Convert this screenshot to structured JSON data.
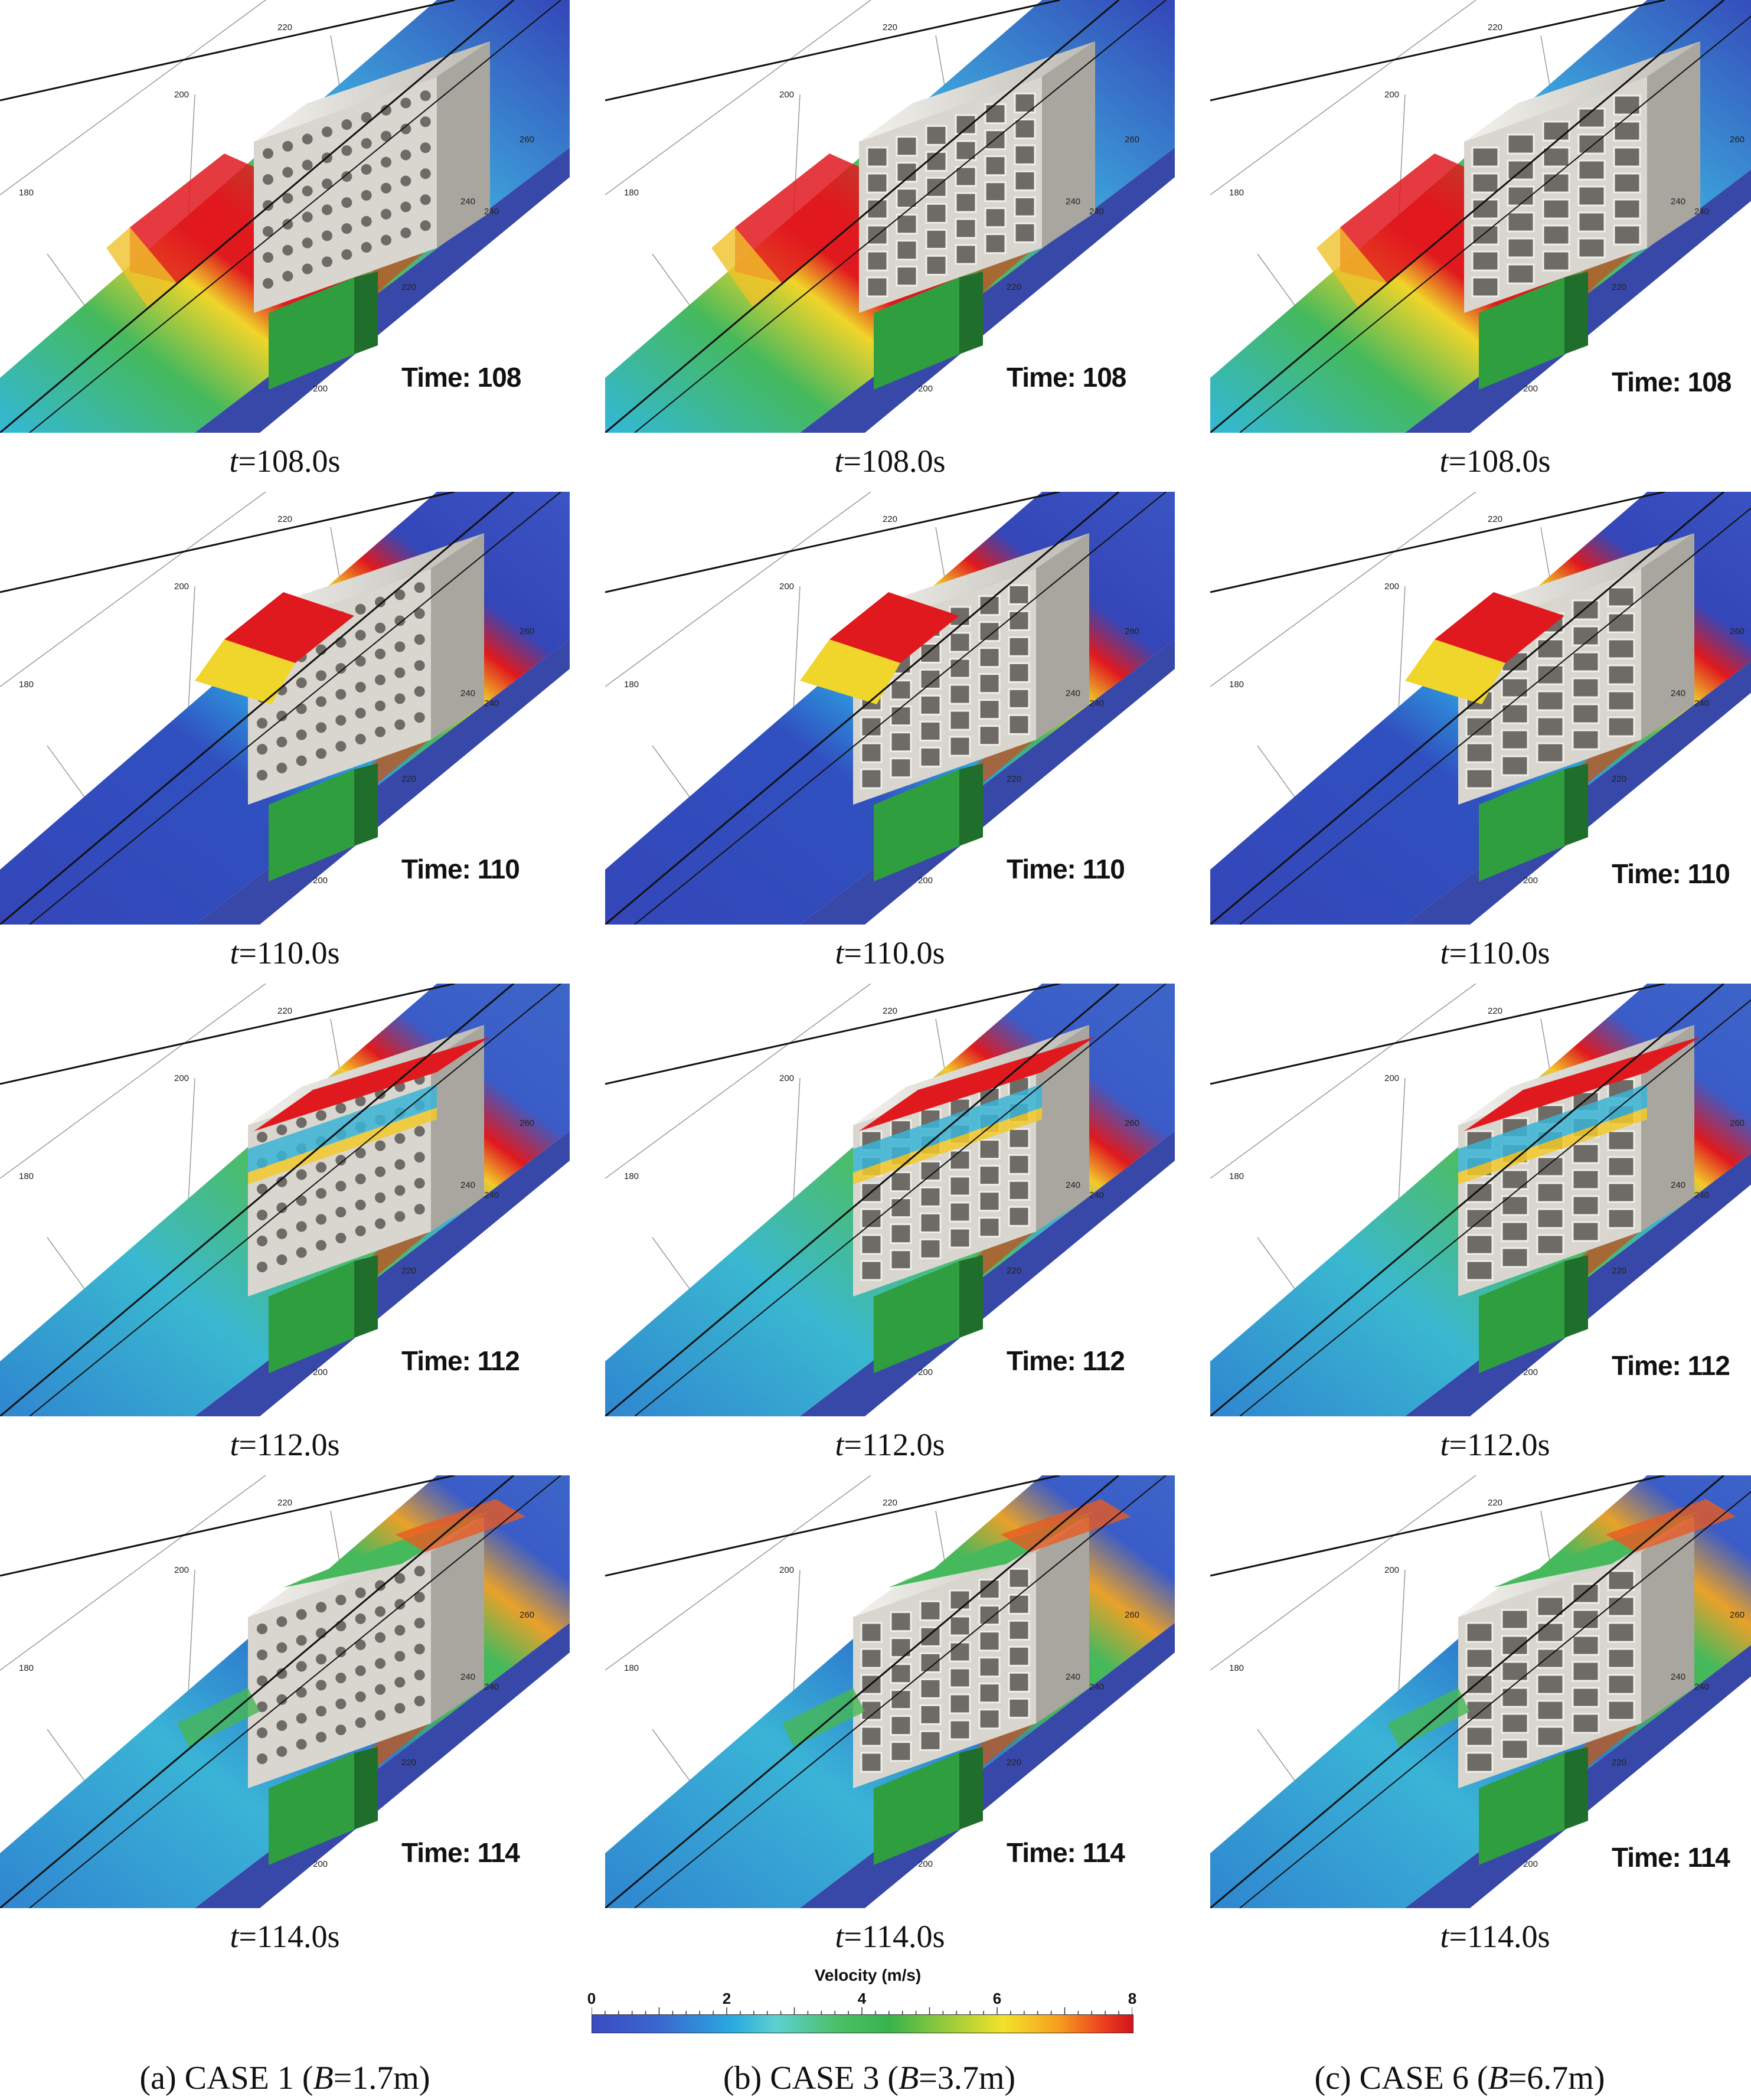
{
  "panels": [
    {
      "row": 0,
      "col": 0,
      "time_label": "Time: 108",
      "caption_var": "t",
      "caption_val": "=108.0s",
      "stage": 0,
      "holes": "round"
    },
    {
      "row": 0,
      "col": 1,
      "time_label": "Time: 108",
      "caption_var": "t",
      "caption_val": "=108.0s",
      "stage": 0,
      "holes": "mid"
    },
    {
      "row": 0,
      "col": 2,
      "time_label": "Time: 108",
      "caption_var": "t",
      "caption_val": "=108.0s",
      "stage": 0,
      "holes": "wide"
    },
    {
      "row": 1,
      "col": 0,
      "time_label": "Time: 110",
      "caption_var": "t",
      "caption_val": "=110.0s",
      "stage": 1,
      "holes": "round"
    },
    {
      "row": 1,
      "col": 1,
      "time_label": "Time: 110",
      "caption_var": "t",
      "caption_val": "=110.0s",
      "stage": 1,
      "holes": "mid"
    },
    {
      "row": 1,
      "col": 2,
      "time_label": "Time: 110",
      "caption_var": "t",
      "caption_val": "=110.0s",
      "stage": 1,
      "holes": "wide"
    },
    {
      "row": 2,
      "col": 0,
      "time_label": "Time: 112",
      "caption_var": "t",
      "caption_val": "=112.0s",
      "stage": 2,
      "holes": "round"
    },
    {
      "row": 2,
      "col": 1,
      "time_label": "Time: 112",
      "caption_var": "t",
      "caption_val": "=112.0s",
      "stage": 2,
      "holes": "mid"
    },
    {
      "row": 2,
      "col": 2,
      "time_label": "Time: 112",
      "caption_var": "t",
      "caption_val": "=112.0s",
      "stage": 2,
      "holes": "wide"
    },
    {
      "row": 3,
      "col": 0,
      "time_label": "Time: 114",
      "caption_var": "t",
      "caption_val": "=114.0s",
      "stage": 3,
      "holes": "round"
    },
    {
      "row": 3,
      "col": 1,
      "time_label": "Time: 114",
      "caption_var": "t",
      "caption_val": "=114.0s",
      "stage": 3,
      "holes": "mid"
    },
    {
      "row": 3,
      "col": 2,
      "time_label": "Time: 114",
      "caption_var": "t",
      "caption_val": "=114.0s",
      "stage": 3,
      "holes": "wide"
    }
  ],
  "axis_ticks": [
    "180",
    "200",
    "220",
    "240",
    "260",
    "200",
    "220",
    "240"
  ],
  "colorbar": {
    "title": "Velocity (m/s)",
    "tick_labels": [
      "0",
      "2",
      "4",
      "6",
      "8"
    ],
    "min": 0,
    "max": 8
  },
  "column_captions": [
    {
      "prefix": "(a)  CASE  1  (",
      "var": "B",
      "suffix": "=1.7m)"
    },
    {
      "prefix": "(b)  CASE  3  (",
      "var": "B",
      "suffix": "=3.7m)"
    },
    {
      "prefix": "(c)  CASE  6  (",
      "var": "B",
      "suffix": "=6.7m)"
    }
  ],
  "colors": {
    "deep_blue": "#3446b8",
    "cyan": "#33c3e0",
    "green": "#3fb34f",
    "yellow": "#f2e02a",
    "red": "#e0191e",
    "building": "#d9d6cf"
  }
}
